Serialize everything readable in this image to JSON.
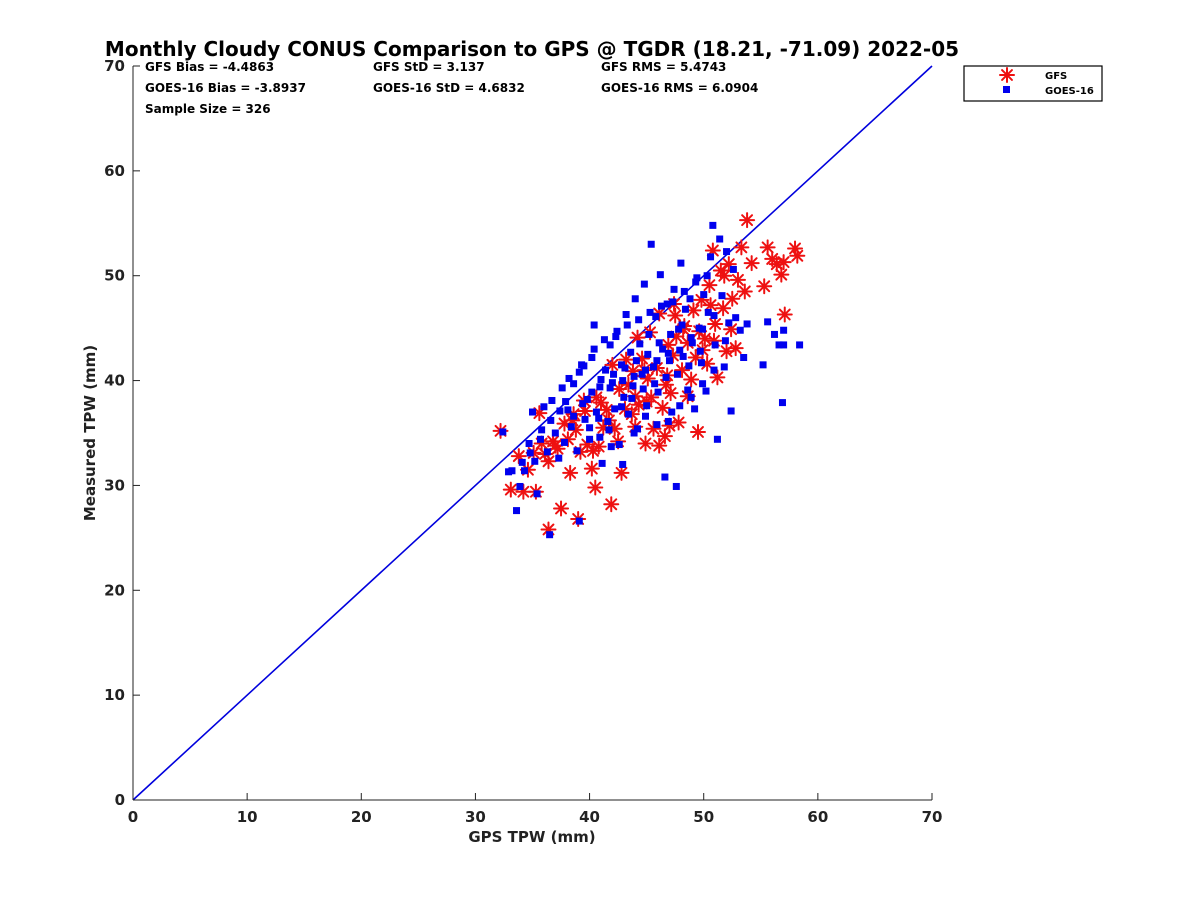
{
  "chart_data": {
    "type": "scatter",
    "title": "Monthly Cloudy CONUS Comparison to GPS @ TGDR (18.21, -71.09) 2022-05",
    "xlabel": "GPS TPW (mm)",
    "ylabel": "Measured TPW (mm)",
    "xlim": [
      0,
      70
    ],
    "ylim": [
      0,
      70
    ],
    "xticks": [
      "0",
      "10",
      "20",
      "30",
      "40",
      "50",
      "60",
      "70"
    ],
    "yticks": [
      "0",
      "10",
      "20",
      "30",
      "40",
      "50",
      "60",
      "70"
    ],
    "grid": false,
    "legend_position": "top-right",
    "stats": [
      "GFS Bias = -4.4863",
      "GFS StD = 3.137",
      "GFS RMS = 5.4743",
      "GOES-16 Bias = -3.8937",
      "GOES-16 StD = 4.6832",
      "GOES-16 RMS = 6.0904",
      "Sample Size = 326"
    ],
    "reference_line": {
      "x": [
        0,
        70
      ],
      "y": [
        0,
        70
      ],
      "color": "#0000dd"
    },
    "series": [
      {
        "name": "GFS",
        "marker": "asterisk",
        "color": "#ee1111",
        "points": [
          [
            32.2,
            35.2
          ],
          [
            33.1,
            29.6
          ],
          [
            33.8,
            32.8
          ],
          [
            34.2,
            29.4
          ],
          [
            34.6,
            31.5
          ],
          [
            35.1,
            33.1
          ],
          [
            35.3,
            29.4
          ],
          [
            35.6,
            36.9
          ],
          [
            36.1,
            33.0
          ],
          [
            36.4,
            25.8
          ],
          [
            36.8,
            34.2
          ],
          [
            37.2,
            33.5
          ],
          [
            37.5,
            27.8
          ],
          [
            37.8,
            35.9
          ],
          [
            38.1,
            34.4
          ],
          [
            38.3,
            31.2
          ],
          [
            38.6,
            36.8
          ],
          [
            39.0,
            26.8
          ],
          [
            39.2,
            33.2
          ],
          [
            39.5,
            38.1
          ],
          [
            39.8,
            33.9
          ],
          [
            40.2,
            31.6
          ],
          [
            40.5,
            29.8
          ],
          [
            40.8,
            33.7
          ],
          [
            41.2,
            35.5
          ],
          [
            41.5,
            37.2
          ],
          [
            41.9,
            28.2
          ],
          [
            42.2,
            35.4
          ],
          [
            42.5,
            34.2
          ],
          [
            42.8,
            31.2
          ],
          [
            43.1,
            37.3
          ],
          [
            43.4,
            39.6
          ],
          [
            43.7,
            36.8
          ],
          [
            44.0,
            38.5
          ],
          [
            44.3,
            37.7
          ],
          [
            44.6,
            42.1
          ],
          [
            44.9,
            34.0
          ],
          [
            45.1,
            40.2
          ],
          [
            45.4,
            38.4
          ],
          [
            45.6,
            35.4
          ],
          [
            45.9,
            41.2
          ],
          [
            46.1,
            33.8
          ],
          [
            46.4,
            37.4
          ],
          [
            46.6,
            34.7
          ],
          [
            46.8,
            40.5
          ],
          [
            47.1,
            38.8
          ],
          [
            47.3,
            42.4
          ],
          [
            47.6,
            44.2
          ],
          [
            47.8,
            36.0
          ],
          [
            48.1,
            41.0
          ],
          [
            48.3,
            45.2
          ],
          [
            48.6,
            43.6
          ],
          [
            48.9,
            40.1
          ],
          [
            49.1,
            46.7
          ],
          [
            49.3,
            42.2
          ],
          [
            49.5,
            35.1
          ],
          [
            49.8,
            47.7
          ],
          [
            50.1,
            44.0
          ],
          [
            50.3,
            41.6
          ],
          [
            50.5,
            49.1
          ],
          [
            50.8,
            52.4
          ],
          [
            51.0,
            45.4
          ],
          [
            51.2,
            40.3
          ],
          [
            51.5,
            50.5
          ],
          [
            51.7,
            46.9
          ],
          [
            52.0,
            42.8
          ],
          [
            52.2,
            51.1
          ],
          [
            52.5,
            47.8
          ],
          [
            52.8,
            43.1
          ],
          [
            53.0,
            49.6
          ],
          [
            53.3,
            52.7
          ],
          [
            53.6,
            48.5
          ],
          [
            53.8,
            55.3
          ],
          [
            54.2,
            51.2
          ],
          [
            55.3,
            49.0
          ],
          [
            55.6,
            52.7
          ],
          [
            56.0,
            51.6
          ],
          [
            56.4,
            51.1
          ],
          [
            56.8,
            50.1
          ],
          [
            57.1,
            46.3
          ],
          [
            57.0,
            51.3
          ],
          [
            58.0,
            52.6
          ],
          [
            58.2,
            51.9
          ],
          [
            44.2,
            44.1
          ],
          [
            45.3,
            44.6
          ],
          [
            46.1,
            46.4
          ],
          [
            47.4,
            47.3
          ],
          [
            43.2,
            42.0
          ],
          [
            42.0,
            41.5
          ],
          [
            41.0,
            37.9
          ],
          [
            40.6,
            38.4
          ],
          [
            39.6,
            37.1
          ],
          [
            38.8,
            35.3
          ],
          [
            48.6,
            38.5
          ],
          [
            47.5,
            46.2
          ],
          [
            46.9,
            43.4
          ],
          [
            44.8,
            41.0
          ],
          [
            43.8,
            40.9
          ],
          [
            42.6,
            39.2
          ],
          [
            41.7,
            36.2
          ],
          [
            40.3,
            33.3
          ],
          [
            49.9,
            42.9
          ],
          [
            50.6,
            47.2
          ],
          [
            51.8,
            50.0
          ],
          [
            52.4,
            44.9
          ],
          [
            45.0,
            38.0
          ],
          [
            44.0,
            35.6
          ],
          [
            46.7,
            39.6
          ],
          [
            47.0,
            35.7
          ],
          [
            48.2,
            44.9
          ],
          [
            49.6,
            44.7
          ],
          [
            50.9,
            43.8
          ],
          [
            38.5,
            36.2
          ],
          [
            37.0,
            33.8
          ],
          [
            36.4,
            32.3
          ],
          [
            35.8,
            34.0
          ]
        ]
      },
      {
        "name": "GOES-16",
        "marker": "square",
        "color": "#0000ee",
        "points": [
          [
            32.4,
            35.1
          ],
          [
            32.9,
            31.3
          ],
          [
            33.6,
            27.6
          ],
          [
            33.9,
            29.9
          ],
          [
            34.3,
            31.4
          ],
          [
            34.7,
            34.0
          ],
          [
            35.0,
            37.0
          ],
          [
            35.2,
            32.3
          ],
          [
            35.4,
            29.2
          ],
          [
            35.8,
            35.3
          ],
          [
            36.0,
            37.5
          ],
          [
            36.3,
            33.2
          ],
          [
            36.5,
            25.3
          ],
          [
            36.7,
            38.1
          ],
          [
            37.0,
            35.0
          ],
          [
            37.3,
            32.6
          ],
          [
            37.6,
            39.3
          ],
          [
            37.8,
            34.1
          ],
          [
            38.1,
            37.2
          ],
          [
            38.4,
            35.6
          ],
          [
            38.6,
            39.7
          ],
          [
            38.9,
            33.3
          ],
          [
            39.1,
            26.6
          ],
          [
            39.3,
            41.5
          ],
          [
            39.6,
            36.3
          ],
          [
            39.8,
            38.2
          ],
          [
            40.0,
            34.4
          ],
          [
            40.2,
            42.2
          ],
          [
            40.4,
            45.3
          ],
          [
            40.6,
            37.0
          ],
          [
            40.9,
            39.4
          ],
          [
            41.1,
            32.1
          ],
          [
            41.4,
            41.0
          ],
          [
            41.6,
            36.1
          ],
          [
            41.8,
            43.4
          ],
          [
            42.0,
            39.8
          ],
          [
            42.2,
            37.3
          ],
          [
            42.4,
            44.7
          ],
          [
            42.6,
            33.9
          ],
          [
            42.8,
            41.5
          ],
          [
            43.0,
            38.4
          ],
          [
            43.2,
            46.3
          ],
          [
            43.4,
            36.8
          ],
          [
            43.6,
            42.7
          ],
          [
            43.8,
            39.5
          ],
          [
            44.0,
            47.8
          ],
          [
            44.2,
            35.4
          ],
          [
            44.4,
            43.5
          ],
          [
            44.6,
            40.6
          ],
          [
            44.8,
            49.2
          ],
          [
            45.0,
            37.6
          ],
          [
            45.2,
            44.4
          ],
          [
            45.4,
            53.0
          ],
          [
            45.6,
            41.3
          ],
          [
            45.8,
            46.1
          ],
          [
            46.0,
            38.9
          ],
          [
            46.2,
            50.1
          ],
          [
            46.4,
            43.0
          ],
          [
            46.6,
            30.8
          ],
          [
            46.8,
            47.3
          ],
          [
            47.0,
            41.9
          ],
          [
            47.2,
            37.0
          ],
          [
            47.4,
            48.7
          ],
          [
            47.6,
            29.9
          ],
          [
            47.8,
            44.9
          ],
          [
            48.0,
            51.2
          ],
          [
            48.2,
            42.3
          ],
          [
            48.4,
            46.8
          ],
          [
            48.6,
            39.1
          ],
          [
            48.8,
            47.8
          ],
          [
            49.0,
            43.6
          ],
          [
            49.2,
            37.3
          ],
          [
            49.4,
            49.8
          ],
          [
            49.6,
            45.0
          ],
          [
            49.8,
            41.7
          ],
          [
            50.0,
            48.2
          ],
          [
            50.2,
            39.0
          ],
          [
            50.4,
            46.5
          ],
          [
            50.6,
            51.8
          ],
          [
            50.8,
            54.8
          ],
          [
            51.0,
            43.4
          ],
          [
            51.2,
            34.4
          ],
          [
            51.4,
            53.5
          ],
          [
            51.6,
            48.1
          ],
          [
            51.8,
            41.3
          ],
          [
            52.0,
            52.3
          ],
          [
            52.2,
            45.5
          ],
          [
            52.4,
            37.1
          ],
          [
            52.6,
            50.6
          ],
          [
            52.8,
            46.0
          ],
          [
            53.2,
            44.8
          ],
          [
            53.5,
            42.2
          ],
          [
            53.8,
            45.4
          ],
          [
            55.2,
            41.5
          ],
          [
            55.6,
            45.6
          ],
          [
            56.2,
            44.4
          ],
          [
            56.6,
            43.4
          ],
          [
            57.0,
            44.8
          ],
          [
            57.0,
            43.4
          ],
          [
            56.9,
            37.9
          ],
          [
            58.4,
            43.4
          ],
          [
            41.0,
            40.1
          ],
          [
            42.1,
            40.6
          ],
          [
            43.1,
            41.2
          ],
          [
            44.1,
            41.9
          ],
          [
            45.1,
            42.5
          ],
          [
            46.1,
            43.6
          ],
          [
            47.1,
            44.4
          ],
          [
            48.1,
            45.3
          ],
          [
            40.2,
            38.9
          ],
          [
            39.4,
            37.8
          ],
          [
            38.6,
            36.6
          ],
          [
            37.9,
            38.0
          ],
          [
            41.8,
            39.3
          ],
          [
            42.9,
            40.0
          ],
          [
            43.9,
            40.4
          ],
          [
            44.9,
            41.0
          ],
          [
            45.9,
            41.9
          ],
          [
            46.9,
            42.6
          ],
          [
            47.9,
            42.9
          ],
          [
            48.9,
            44.1
          ],
          [
            49.9,
            44.9
          ],
          [
            50.9,
            46.2
          ],
          [
            40.8,
            36.4
          ],
          [
            41.7,
            35.3
          ],
          [
            42.8,
            37.5
          ],
          [
            43.7,
            38.3
          ],
          [
            44.7,
            39.2
          ],
          [
            45.7,
            39.7
          ],
          [
            46.7,
            40.3
          ],
          [
            47.7,
            40.6
          ],
          [
            48.7,
            41.4
          ],
          [
            49.7,
            42.8
          ],
          [
            39.5,
            41.4
          ],
          [
            40.4,
            43.0
          ],
          [
            41.3,
            43.9
          ],
          [
            42.3,
            44.2
          ],
          [
            43.3,
            45.3
          ],
          [
            44.3,
            45.8
          ],
          [
            45.3,
            46.5
          ],
          [
            46.3,
            47.1
          ],
          [
            47.3,
            47.5
          ],
          [
            48.3,
            48.5
          ],
          [
            49.3,
            49.4
          ],
          [
            50.3,
            50.0
          ],
          [
            39.1,
            40.8
          ],
          [
            38.2,
            40.2
          ],
          [
            37.4,
            37.1
          ],
          [
            36.6,
            36.2
          ],
          [
            35.7,
            34.4
          ],
          [
            34.8,
            33.1
          ],
          [
            34.1,
            32.2
          ],
          [
            33.2,
            31.4
          ],
          [
            40.0,
            35.5
          ],
          [
            40.9,
            34.6
          ],
          [
            41.9,
            33.7
          ],
          [
            42.9,
            32.0
          ],
          [
            43.9,
            35.0
          ],
          [
            44.9,
            36.6
          ],
          [
            45.9,
            35.8
          ],
          [
            46.9,
            36.1
          ],
          [
            47.9,
            37.6
          ],
          [
            48.9,
            38.4
          ],
          [
            49.9,
            39.7
          ],
          [
            50.9,
            41.0
          ],
          [
            51.9,
            43.8
          ]
        ]
      }
    ]
  }
}
